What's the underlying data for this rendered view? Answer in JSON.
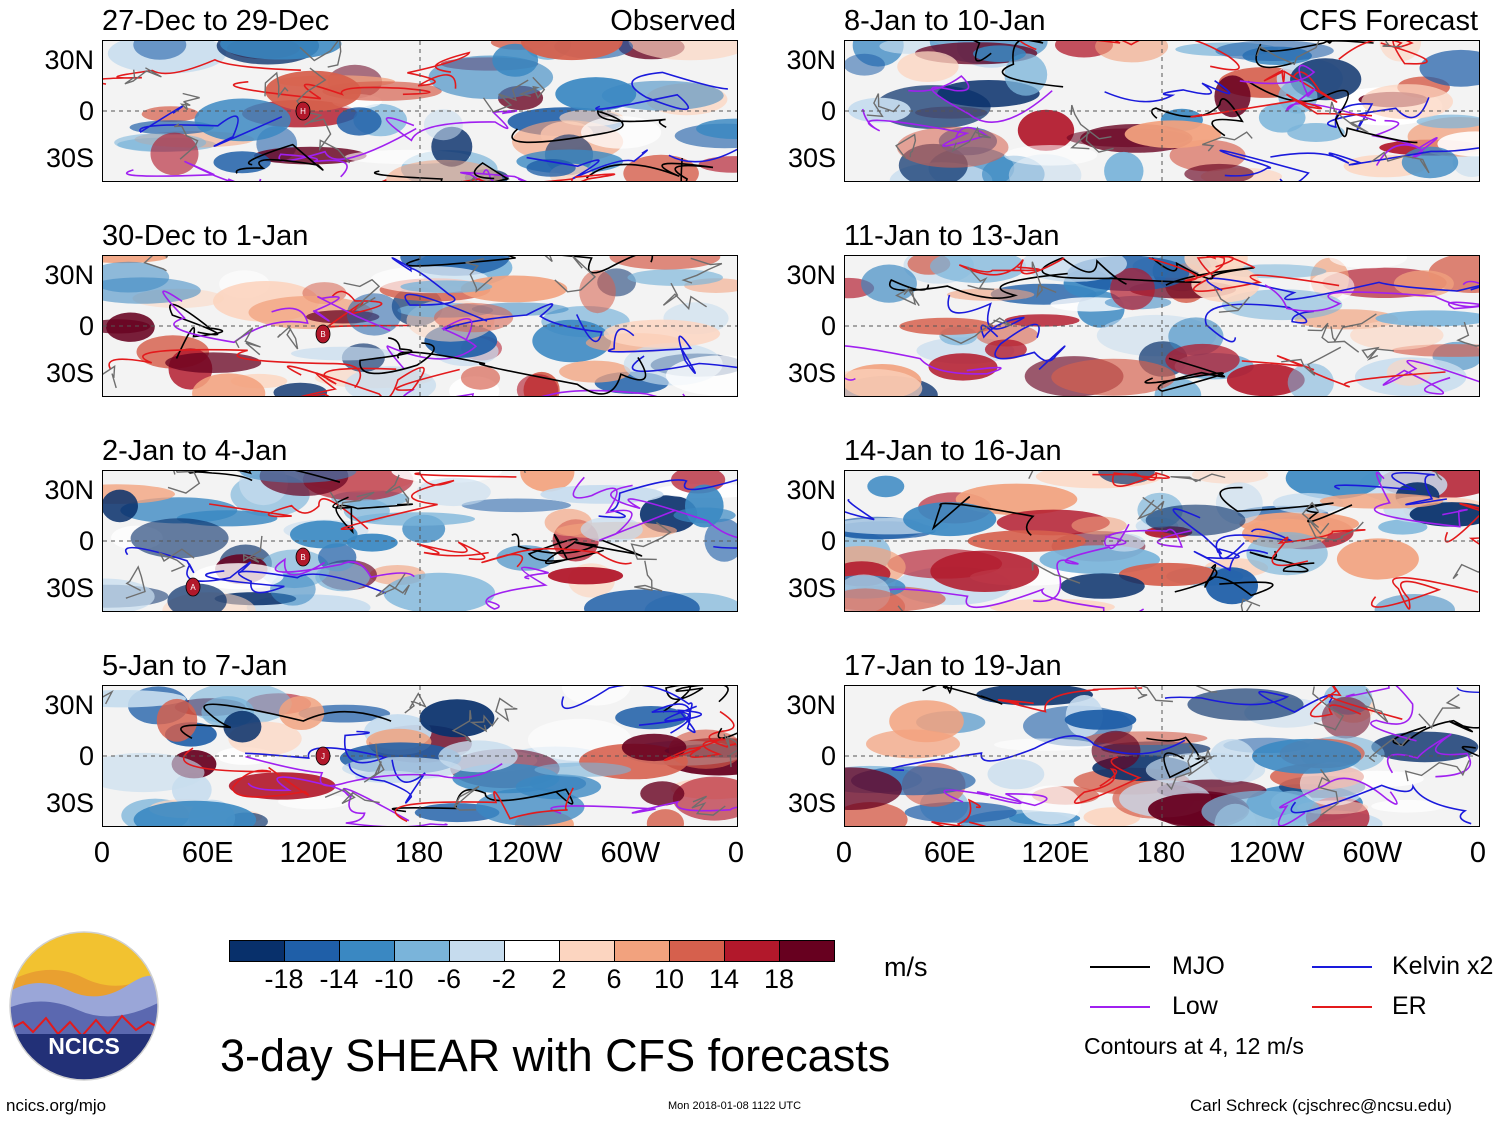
{
  "chart_data": {
    "type": "heatmap",
    "title": "3-day SHEAR with CFS forecasts",
    "variable": "SHEAR",
    "units": "m/s",
    "panel_groups": {
      "left_label": "Observed",
      "right_label": "CFS Forecast"
    },
    "panels": [
      {
        "title": "27-Dec to 29-Dec",
        "column": "left",
        "type": "observed",
        "markers": [
          "H"
        ]
      },
      {
        "title": "30-Dec to 1-Jan",
        "column": "left",
        "type": "observed",
        "markers": [
          "B"
        ]
      },
      {
        "title": "2-Jan to 4-Jan",
        "column": "left",
        "type": "observed",
        "markers": [
          "B",
          "A"
        ]
      },
      {
        "title": "5-Jan to 7-Jan",
        "column": "left",
        "type": "observed",
        "markers": [
          "J"
        ]
      },
      {
        "title": "8-Jan to 10-Jan",
        "column": "right",
        "type": "forecast",
        "markers": []
      },
      {
        "title": "11-Jan to 13-Jan",
        "column": "right",
        "type": "forecast",
        "markers": []
      },
      {
        "title": "14-Jan to 16-Jan",
        "column": "right",
        "type": "forecast",
        "markers": []
      },
      {
        "title": "17-Jan to 19-Jan",
        "column": "right",
        "type": "forecast",
        "markers": []
      }
    ],
    "y_ticks": [
      "30N",
      "0",
      "30S"
    ],
    "x_ticks": [
      "0",
      "60E",
      "120E",
      "180",
      "120W",
      "60W",
      "0"
    ],
    "colorbar": {
      "levels": [
        "-18",
        "-14",
        "-10",
        "-6",
        "-2",
        "2",
        "6",
        "10",
        "14",
        "18"
      ],
      "colors": [
        "#08306b",
        "#1f5fa8",
        "#3a88c2",
        "#7ab4da",
        "#c6dcee",
        "#ffffff",
        "#fcd5c0",
        "#f2a27e",
        "#d6604d",
        "#b2182b",
        "#67001f"
      ],
      "units_label": "m/s"
    },
    "legend": [
      {
        "label": "MJO",
        "color": "#000000"
      },
      {
        "label": "Kelvin x2",
        "color": "#1a1adc"
      },
      {
        "label": "Low",
        "color": "#a020f0"
      },
      {
        "label": "ER",
        "color": "#e31a1c"
      }
    ],
    "contour_note": "Contours at 4, 12 m/s"
  },
  "footer": {
    "logo_text": "NCICS",
    "site": "ncics.org/mjo",
    "timestamp": "Mon 2018-01-08 1122 UTC",
    "credit": "Carl Schreck (cjschrec@ncsu.edu)"
  }
}
